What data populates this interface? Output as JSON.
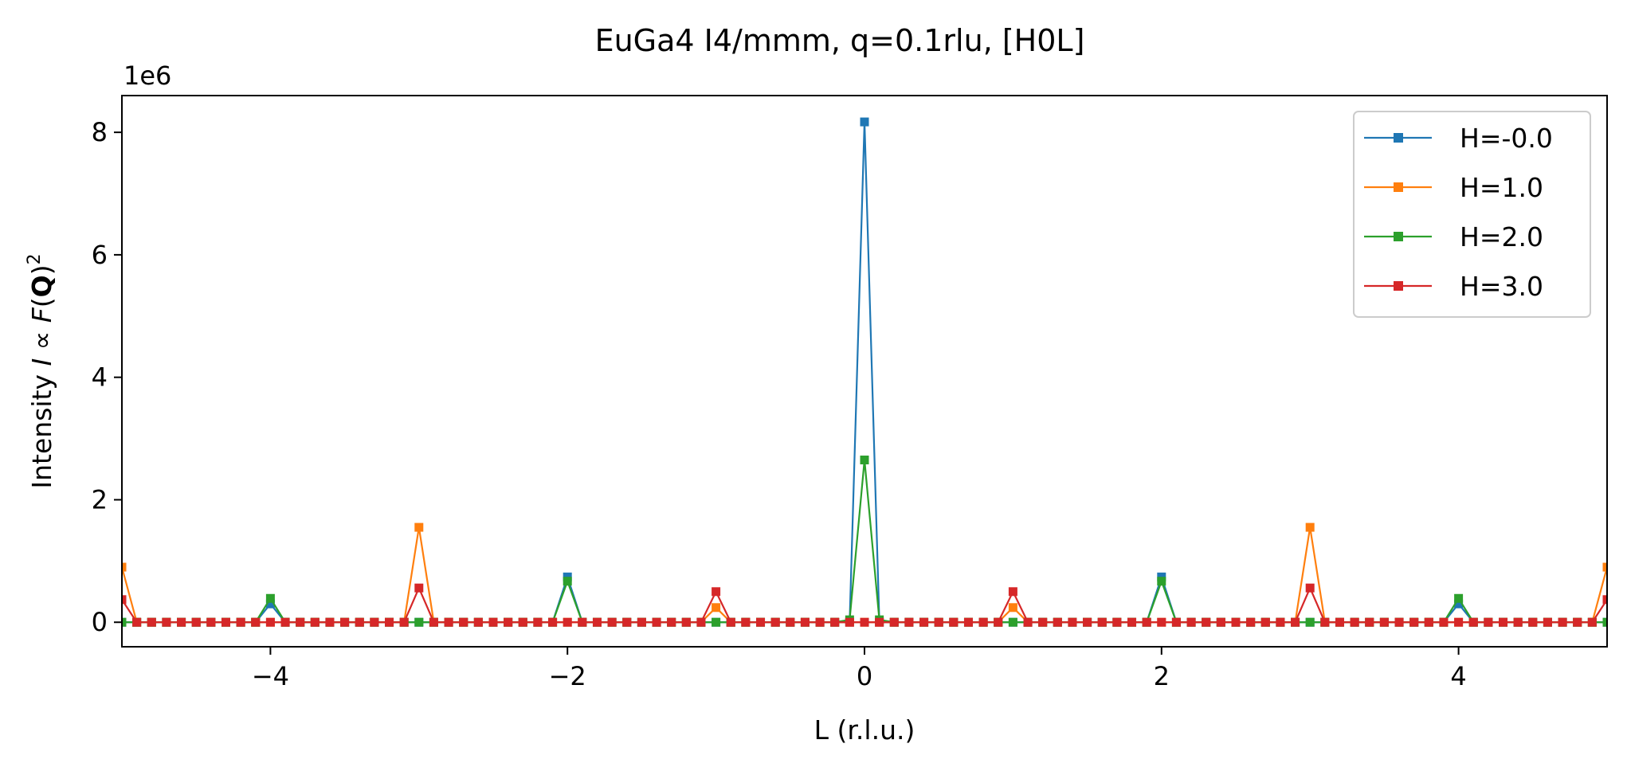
{
  "chart_data": {
    "type": "line",
    "title": "EuGa4 I4/mmm, q=0.1rlu, [H0L]",
    "xlabel": "L (r.l.u.)",
    "ylabel_prefix": "Intensity ",
    "ylabel_I": "I",
    "ylabel_prop": " ∝ ",
    "ylabel_F": "F",
    "ylabel_open": "(",
    "ylabel_Q": "Q",
    "ylabel_close": ")",
    "ylabel_sup": "2",
    "y_offset_label": "1e6",
    "xlim": [
      -5,
      5
    ],
    "ylim": [
      -400000,
      8600000
    ],
    "x_ticks": [
      -4,
      -2,
      0,
      2,
      4
    ],
    "x_tick_labels": [
      "−4",
      "−2",
      "0",
      "2",
      "4"
    ],
    "y_ticks": [
      0,
      2000000,
      4000000,
      6000000,
      8000000
    ],
    "y_tick_labels": [
      "0",
      "2",
      "4",
      "6",
      "8"
    ],
    "x_step": 0.1,
    "legend_position": "top-right",
    "series": [
      {
        "name": "H=-0.0",
        "color": "#1f77b4",
        "peaks": [
          {
            "x": -4,
            "y": 300000
          },
          {
            "x": -2,
            "y": 740000
          },
          {
            "x": 0,
            "y": 8170000
          },
          {
            "x": 2,
            "y": 740000
          },
          {
            "x": 4,
            "y": 300000
          }
        ]
      },
      {
        "name": "H=1.0",
        "color": "#ff7f0e",
        "peaks": [
          {
            "x": -5,
            "y": 900000
          },
          {
            "x": -3,
            "y": 1550000
          },
          {
            "x": -1,
            "y": 240000
          },
          {
            "x": 1,
            "y": 240000
          },
          {
            "x": 3,
            "y": 1550000
          },
          {
            "x": 5,
            "y": 900000
          }
        ]
      },
      {
        "name": "H=2.0",
        "color": "#2ca02c",
        "peaks": [
          {
            "x": -4,
            "y": 390000
          },
          {
            "x": -2,
            "y": 670000
          },
          {
            "x": -0.1,
            "y": 40000
          },
          {
            "x": 0,
            "y": 2650000
          },
          {
            "x": 0.1,
            "y": 40000
          },
          {
            "x": 2,
            "y": 670000
          },
          {
            "x": 4,
            "y": 390000
          }
        ]
      },
      {
        "name": "H=3.0",
        "color": "#d62728",
        "peaks": [
          {
            "x": -5,
            "y": 370000
          },
          {
            "x": -3,
            "y": 560000
          },
          {
            "x": -1,
            "y": 500000
          },
          {
            "x": 1,
            "y": 500000
          },
          {
            "x": 3,
            "y": 560000
          },
          {
            "x": 5,
            "y": 370000
          }
        ]
      }
    ]
  }
}
